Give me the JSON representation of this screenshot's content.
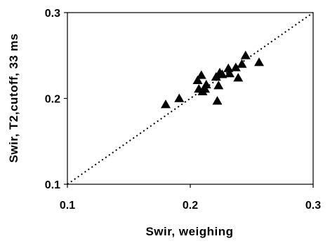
{
  "chart_data": {
    "type": "scatter",
    "title": "",
    "xlabel": "Swir, weighing",
    "ylabel": "Swir, T2,cutoff, 33 ms",
    "xlim": [
      0.1,
      0.3
    ],
    "ylim": [
      0.1,
      0.3
    ],
    "x_ticks": [
      "0.1",
      "0.2",
      "0.3"
    ],
    "y_ticks": [
      "0.1",
      "0.2",
      "0.3"
    ],
    "grid": false,
    "marker": "triangle",
    "marker_color": "#000000",
    "reference_line": {
      "style": "dotted",
      "from": [
        0.1,
        0.1
      ],
      "to": [
        0.3,
        0.3
      ]
    },
    "series": [
      {
        "points": [
          {
            "x": 0.18,
            "y": 0.193
          },
          {
            "x": 0.191,
            "y": 0.2
          },
          {
            "x": 0.206,
            "y": 0.221
          },
          {
            "x": 0.207,
            "y": 0.211
          },
          {
            "x": 0.209,
            "y": 0.227
          },
          {
            "x": 0.21,
            "y": 0.208
          },
          {
            "x": 0.212,
            "y": 0.211
          },
          {
            "x": 0.213,
            "y": 0.216
          },
          {
            "x": 0.221,
            "y": 0.225
          },
          {
            "x": 0.222,
            "y": 0.197
          },
          {
            "x": 0.223,
            "y": 0.215
          },
          {
            "x": 0.224,
            "y": 0.23
          },
          {
            "x": 0.226,
            "y": 0.228
          },
          {
            "x": 0.231,
            "y": 0.235
          },
          {
            "x": 0.232,
            "y": 0.229
          },
          {
            "x": 0.237,
            "y": 0.236
          },
          {
            "x": 0.239,
            "y": 0.224
          },
          {
            "x": 0.242,
            "y": 0.24
          },
          {
            "x": 0.245,
            "y": 0.25
          },
          {
            "x": 0.256,
            "y": 0.242
          }
        ]
      }
    ]
  }
}
